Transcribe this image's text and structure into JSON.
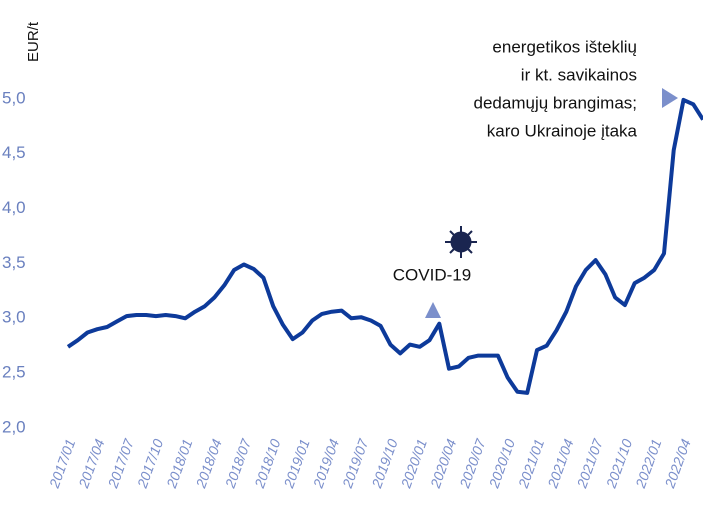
{
  "chart_data": {
    "type": "line",
    "y_label": "EUR/t",
    "annotations": {
      "energy": [
        "energetikos išteklių",
        "ir kt. savikainos",
        "dedamųjų brangimas;",
        "karo Ukrainoje įtaka"
      ],
      "covid": "COVID-19"
    },
    "categories": [
      "2017/01",
      null,
      null,
      "2017/04",
      null,
      null,
      "2017/07",
      null,
      null,
      "2017/10",
      null,
      null,
      "2018/01",
      null,
      null,
      "2018/04",
      null,
      null,
      "2018/07",
      null,
      null,
      "2018/10",
      null,
      null,
      "2019/01",
      null,
      null,
      "2019/04",
      null,
      null,
      "2019/07",
      null,
      null,
      "2019/10",
      null,
      null,
      "2020/01",
      null,
      null,
      "2020/04",
      null,
      null,
      "2020/07",
      null,
      null,
      "2020/10",
      null,
      null,
      "2021/01",
      null,
      null,
      "2021/04",
      null,
      null,
      "2021/07",
      null,
      null,
      "2021/10",
      null,
      null,
      "2022/01",
      null,
      null,
      "2022/04",
      null,
      null
    ],
    "series": [
      {
        "color": "#0d3a9a",
        "values": [
          2.74,
          2.8,
          2.87,
          2.9,
          2.92,
          2.97,
          3.02,
          3.03,
          3.03,
          3.02,
          3.03,
          3.02,
          3.0,
          3.06,
          3.11,
          3.19,
          3.3,
          3.44,
          3.49,
          3.45,
          3.37,
          3.11,
          2.94,
          2.81,
          2.87,
          2.98,
          3.04,
          3.06,
          3.07,
          3.0,
          3.01,
          2.98,
          2.93,
          2.76,
          2.68,
          2.76,
          2.74,
          2.8,
          2.95,
          2.54,
          2.56,
          2.64,
          2.66,
          2.66,
          2.66,
          2.46,
          2.33,
          2.32,
          2.71,
          2.75,
          2.89,
          3.06,
          3.29,
          3.44,
          3.53,
          3.4,
          3.19,
          3.12,
          3.32,
          3.37,
          3.44,
          3.59,
          4.53,
          4.99,
          4.95,
          4.81
        ]
      }
    ],
    "ylim": [
      2,
      5.9
    ],
    "yticks": [
      {
        "value": 2,
        "label": "2,0"
      },
      {
        "value": 2.5,
        "label": "2,5"
      },
      {
        "value": 3,
        "label": "3,0"
      },
      {
        "value": 3.5,
        "label": "3,5"
      },
      {
        "value": 4,
        "label": "4,0"
      },
      {
        "value": 4.5,
        "label": "4,5"
      },
      {
        "value": 5,
        "label": "5,0"
      }
    ]
  }
}
